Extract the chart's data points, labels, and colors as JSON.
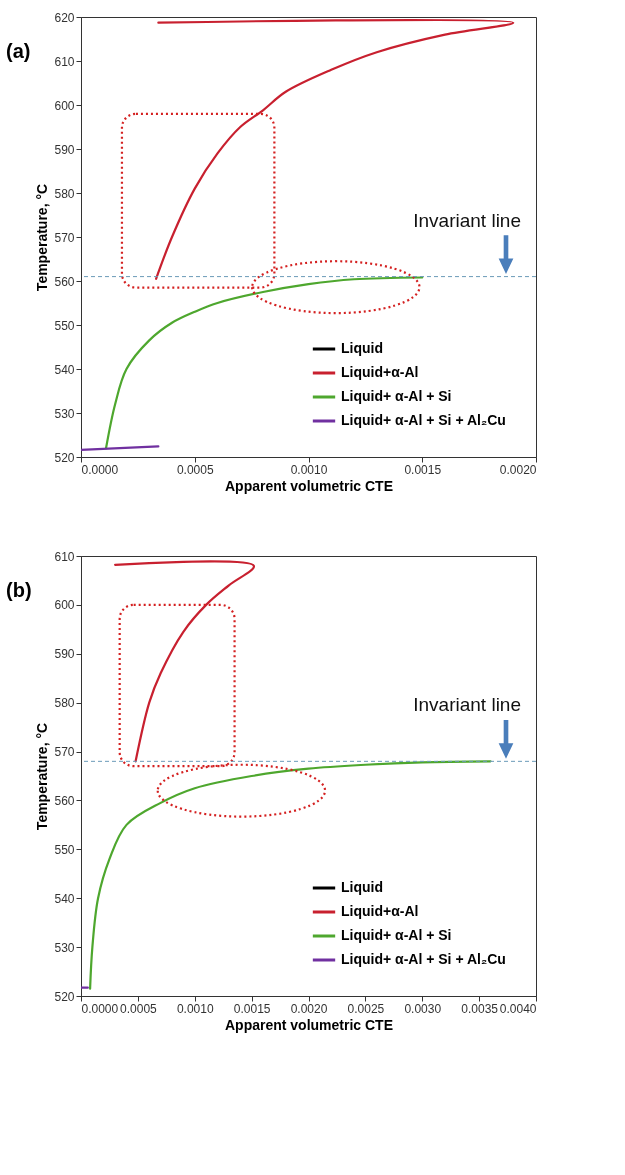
{
  "chart_data": [
    {
      "type": "line",
      "xlabel": "Apparent volumetric CTE",
      "ylabel": "Temperature, °C",
      "annotations": [
        "(a)"
      ],
      "xlim": [
        0,
        0.002
      ],
      "ylim": [
        520,
        620
      ],
      "xticks": [
        {
          "value": 0,
          "label": "0.0000"
        },
        {
          "value": 0.0005,
          "label": "0.0005"
        },
        {
          "value": 0.001,
          "label": "0.0010"
        },
        {
          "value": 0.0015,
          "label": "0.0015"
        },
        {
          "value": 0.002,
          "label": "0.0020"
        }
      ],
      "yticks": [
        520,
        530,
        540,
        550,
        560,
        570,
        580,
        590,
        600,
        610,
        620
      ],
      "grid": false,
      "legend": "bottom right",
      "marker": "none",
      "line_style": "solid",
      "ref_lines": [
        {
          "axis": "y",
          "value": 561,
          "label": "Invariant line",
          "color": "#6a9ab8",
          "line_style": "dashed"
        }
      ],
      "series": [
        {
          "name": "Liquid",
          "color": "#000000"
        },
        {
          "name": "Liquid+α-Al",
          "color": "#c8202f",
          "x": [
            0.00034,
            0.0019,
            0.0016,
            0.0013,
            0.0011,
            0.0009,
            0.0008,
            0.0007,
            0.0006,
            0.0005,
            0.0004,
            0.00033
          ],
          "values": [
            618.7,
            618.7,
            616,
            612,
            608,
            603,
            598.8,
            595,
            589,
            581,
            570,
            560.5
          ]
        },
        {
          "name": "Liquid+ α-Al + Si",
          "color": "#4ea72e",
          "x": [
            0.00011,
            0.00015,
            0.0002,
            0.0003,
            0.0004,
            0.0005,
            0.0006,
            0.0008,
            0.001,
            0.0012,
            0.0015
          ],
          "values": [
            522,
            532,
            540,
            546.5,
            550.5,
            553,
            555,
            557.5,
            559.3,
            560.4,
            560.8
          ]
        },
        {
          "name": "Liquid+ α-Al + Si + Al₂Cu",
          "color": "#7030a0",
          "x": [
            0,
            0.00034
          ],
          "values": [
            521.6,
            522.4
          ]
        }
      ]
    },
    {
      "type": "line",
      "xlabel": "Apparent volumetric CTE",
      "ylabel": "Temperature, °C",
      "annotations": [
        "(b)"
      ],
      "xlim": [
        0,
        0.004
      ],
      "ylim": [
        520,
        610
      ],
      "xticks": [
        {
          "value": 0,
          "label": "0.0000"
        },
        {
          "value": 0.0005,
          "label": "0.0005"
        },
        {
          "value": 0.001,
          "label": "0.0010"
        },
        {
          "value": 0.0015,
          "label": "0.0015"
        },
        {
          "value": 0.002,
          "label": "0.0020"
        },
        {
          "value": 0.0025,
          "label": "0.0025"
        },
        {
          "value": 0.003,
          "label": "0.0030"
        },
        {
          "value": 0.0035,
          "label": "0.0035"
        },
        {
          "value": 0.004,
          "label": "0.0040"
        }
      ],
      "yticks": [
        520,
        530,
        540,
        550,
        560,
        570,
        580,
        590,
        600,
        610
      ],
      "grid": false,
      "legend": "bottom right",
      "marker": "none",
      "line_style": "solid",
      "ref_lines": [
        {
          "axis": "y",
          "value": 568,
          "label": "Invariant line",
          "color": "#6a9ab8",
          "line_style": "dashed"
        }
      ],
      "series": [
        {
          "name": "Liquid",
          "color": "#000000"
        },
        {
          "name": "Liquid+α-Al",
          "color": "#c8202f",
          "x": [
            0.0003,
            0.00152,
            0.0013,
            0.0011,
            0.0009,
            0.0007,
            0.0006,
            0.00048
          ],
          "values": [
            608.2,
            608,
            604,
            600,
            594.5,
            586,
            580,
            568
          ]
        },
        {
          "name": "Liquid+ α-Al + Si",
          "color": "#4ea72e",
          "x": [
            8e-05,
            0.0001,
            0.00015,
            0.00025,
            0.0004,
            0.0007,
            0.001,
            0.0015,
            0.002,
            0.0025,
            0.003,
            0.0036
          ],
          "values": [
            521.5,
            530,
            540,
            548,
            555,
            559.5,
            562.5,
            565,
            566.5,
            567.3,
            567.8,
            568
          ]
        },
        {
          "name": "Liquid+ α-Al + Si + Al₂Cu",
          "color": "#7030a0",
          "x": [
            0,
            6e-05
          ],
          "values": [
            521.7,
            521.7
          ]
        }
      ]
    }
  ]
}
